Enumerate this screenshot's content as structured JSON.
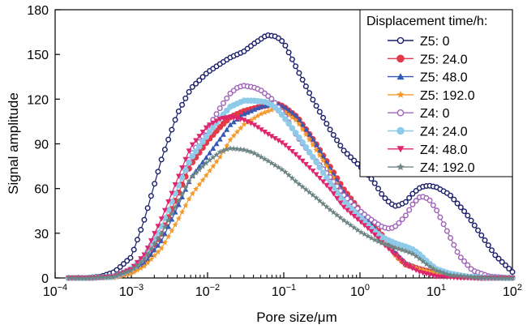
{
  "chart_data": {
    "type": "line",
    "title": "",
    "xlabel": "Pore size/μm",
    "ylabel": "Signal amplitude",
    "xscale": "log",
    "xlim": [
      0.0001,
      100
    ],
    "ylim": [
      0,
      180
    ],
    "xticks": [
      0.0001,
      0.001,
      0.01,
      0.1,
      1,
      10,
      100
    ],
    "xtick_labels": [
      {
        "base": "10",
        "exp": "−4"
      },
      {
        "base": "10",
        "exp": "−3"
      },
      {
        "base": "10",
        "exp": "−2"
      },
      {
        "base": "10",
        "exp": "−1"
      },
      {
        "base": "10",
        "exp": "0"
      },
      {
        "base": "10",
        "exp": "1"
      },
      {
        "base": "10",
        "exp": "2"
      }
    ],
    "yticks": [
      0,
      30,
      60,
      90,
      120,
      150,
      180
    ],
    "ytick_labels": [
      "0",
      "30",
      "60",
      "90",
      "120",
      "150",
      "180"
    ],
    "grid": false,
    "legend": {
      "title": "Displacement time/h:",
      "position": "top-right"
    },
    "series": [
      {
        "name": "Z5: 0",
        "color": "#1b1f6b",
        "marker": "circle-open",
        "x": [
          0.00015,
          0.00025,
          0.0004,
          0.0006,
          0.001,
          0.0015,
          0.0025,
          0.004,
          0.006,
          0.01,
          0.015,
          0.02,
          0.03,
          0.04,
          0.06,
          0.08,
          0.1,
          0.15,
          0.25,
          0.4,
          0.6,
          1,
          1.5,
          2,
          2.5,
          3,
          4,
          5,
          6.3,
          8,
          10,
          15,
          25,
          40,
          60,
          100
        ],
        "y": [
          0,
          0,
          1,
          4,
          14,
          40,
          80,
          110,
          127,
          138,
          144,
          148,
          152,
          157,
          163,
          162,
          158,
          140,
          118,
          100,
          86,
          75,
          65,
          55,
          50,
          48,
          51,
          57,
          61,
          62,
          61,
          56,
          43,
          28,
          15,
          4
        ]
      },
      {
        "name": "Z5: 24.0",
        "color": "#e33a4a",
        "marker": "circle",
        "x": [
          0.00015,
          0.0003,
          0.0006,
          0.001,
          0.0015,
          0.0025,
          0.004,
          0.006,
          0.01,
          0.015,
          0.02,
          0.03,
          0.05,
          0.08,
          0.1,
          0.15,
          0.25,
          0.4,
          0.6,
          1,
          1.5,
          2,
          2.5,
          3,
          4,
          6,
          10,
          20,
          40,
          100
        ],
        "y": [
          0,
          0,
          1,
          5,
          12,
          30,
          55,
          76,
          92,
          102,
          108,
          112,
          115,
          117,
          115,
          108,
          92,
          75,
          60,
          45,
          35,
          28,
          22,
          15,
          9,
          6,
          3,
          1,
          0,
          0
        ]
      },
      {
        "name": "Z5: 48.0",
        "color": "#3558b4",
        "marker": "triangle-up",
        "x": [
          0.00015,
          0.0003,
          0.0006,
          0.001,
          0.0015,
          0.0025,
          0.004,
          0.006,
          0.01,
          0.015,
          0.02,
          0.03,
          0.05,
          0.08,
          0.1,
          0.15,
          0.25,
          0.4,
          0.6,
          1,
          1.5,
          2,
          2.5,
          3,
          4,
          6,
          10,
          20,
          40,
          100
        ],
        "y": [
          0,
          0,
          1,
          4,
          10,
          25,
          47,
          67,
          82,
          94,
          103,
          110,
          115,
          117,
          115,
          108,
          92,
          74,
          58,
          44,
          34,
          27,
          21,
          16,
          10,
          6,
          3,
          1,
          0,
          0
        ]
      },
      {
        "name": "Z5: 192.0",
        "color": "#f49a2c",
        "marker": "star",
        "x": [
          0.00015,
          0.0003,
          0.0006,
          0.001,
          0.0015,
          0.0025,
          0.004,
          0.006,
          0.01,
          0.015,
          0.02,
          0.03,
          0.05,
          0.08,
          0.1,
          0.15,
          0.25,
          0.4,
          0.6,
          1,
          1.5,
          2,
          2.5,
          3,
          4,
          6,
          10,
          20,
          40,
          100
        ],
        "y": [
          0,
          0,
          0,
          3,
          8,
          20,
          38,
          55,
          70,
          82,
          93,
          103,
          110,
          114,
          112,
          105,
          88,
          72,
          56,
          42,
          32,
          26,
          20,
          14,
          9,
          6,
          3,
          1,
          0,
          0
        ]
      },
      {
        "name": "Z4: 0",
        "color": "#a064b9",
        "marker": "circle-open",
        "x": [
          0.00015,
          0.0003,
          0.0006,
          0.001,
          0.0015,
          0.0025,
          0.004,
          0.006,
          0.01,
          0.015,
          0.02,
          0.025,
          0.03,
          0.04,
          0.05,
          0.07,
          0.1,
          0.15,
          0.25,
          0.4,
          0.6,
          1,
          1.5,
          2,
          2.5,
          3,
          4,
          5,
          6.3,
          8,
          10,
          15,
          20,
          30,
          50,
          100
        ],
        "y": [
          0,
          0,
          1,
          6,
          14,
          35,
          60,
          82,
          100,
          115,
          124,
          128,
          129,
          128,
          126,
          120,
          110,
          95,
          80,
          68,
          56,
          45,
          38,
          34,
          33,
          35,
          42,
          50,
          55,
          53,
          46,
          28,
          15,
          5,
          1,
          0
        ]
      },
      {
        "name": "Z4: 24.0",
        "color": "#8fcbe9",
        "marker": "circle",
        "x": [
          0.00015,
          0.0003,
          0.0006,
          0.001,
          0.0015,
          0.0025,
          0.004,
          0.006,
          0.01,
          0.015,
          0.02,
          0.03,
          0.04,
          0.06,
          0.08,
          0.1,
          0.15,
          0.25,
          0.4,
          0.6,
          1,
          1.5,
          2,
          3,
          4,
          5,
          6,
          8,
          10,
          15,
          25,
          50,
          100
        ],
        "y": [
          0,
          0,
          1,
          6,
          14,
          35,
          60,
          80,
          96,
          108,
          115,
          119,
          119,
          118,
          114,
          108,
          96,
          80,
          64,
          52,
          41,
          32,
          27,
          23,
          21,
          19,
          16,
          10,
          6,
          3,
          1,
          0,
          0
        ]
      },
      {
        "name": "Z4: 48.0",
        "color": "#e0256f",
        "marker": "triangle-down",
        "x": [
          0.00015,
          0.0003,
          0.0006,
          0.001,
          0.0015,
          0.0025,
          0.004,
          0.006,
          0.01,
          0.015,
          0.02,
          0.03,
          0.04,
          0.06,
          0.1,
          0.15,
          0.25,
          0.4,
          0.6,
          1,
          1.5,
          2,
          3,
          4,
          6,
          10,
          20,
          50,
          100
        ],
        "y": [
          0,
          0,
          1,
          6,
          16,
          40,
          66,
          88,
          102,
          107,
          108,
          106,
          103,
          97,
          90,
          82,
          71,
          60,
          48,
          38,
          30,
          23,
          15,
          9,
          4,
          1,
          0,
          0,
          0
        ]
      },
      {
        "name": "Z4: 192.0",
        "color": "#6e8585",
        "marker": "star",
        "x": [
          0.00015,
          0.0003,
          0.0006,
          0.001,
          0.0015,
          0.0025,
          0.004,
          0.006,
          0.01,
          0.015,
          0.02,
          0.03,
          0.04,
          0.06,
          0.1,
          0.15,
          0.25,
          0.4,
          0.6,
          1,
          1.5,
          2,
          3,
          4,
          5,
          6,
          8,
          10,
          15,
          25,
          50,
          100
        ],
        "y": [
          0,
          0,
          1,
          5,
          13,
          30,
          50,
          67,
          78,
          85,
          87,
          86,
          84,
          79,
          72,
          64,
          55,
          46,
          39,
          31,
          26,
          23,
          20,
          18,
          16,
          13,
          8,
          5,
          2,
          1,
          0,
          0
        ]
      }
    ]
  }
}
